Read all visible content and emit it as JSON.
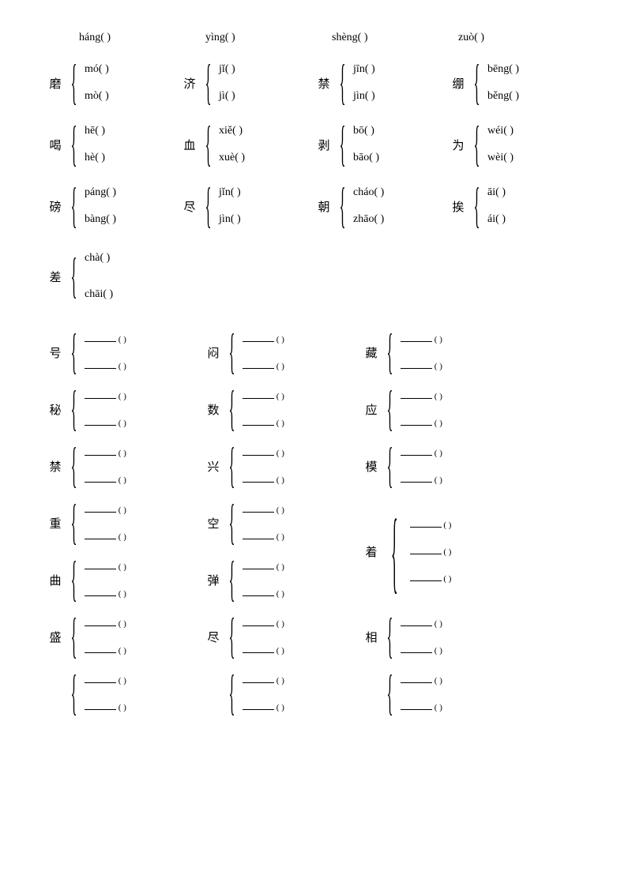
{
  "topRow": [
    "háng(        )",
    "yìng(        )",
    "shèng(        )",
    "zuò(        )"
  ],
  "groups1": [
    {
      "hanzi": "磨",
      "readings": [
        "mó(        )",
        "mò(        )"
      ]
    },
    {
      "hanzi": "济",
      "readings": [
        "jǐ(        )",
        "jì(        )"
      ]
    },
    {
      "hanzi": "禁",
      "readings": [
        "jīn(        )",
        "jìn(        )"
      ]
    },
    {
      "hanzi": "绷",
      "readings": [
        "bēng(        )",
        "běng(        )"
      ]
    },
    {
      "hanzi": "喝",
      "readings": [
        "hē(        )",
        "hè(        )"
      ]
    },
    {
      "hanzi": "血",
      "readings": [
        "xiě(        )",
        "xuè(        )"
      ]
    },
    {
      "hanzi": "剥",
      "readings": [
        "bō(        )",
        "bāo(        )"
      ]
    },
    {
      "hanzi": "为",
      "readings": [
        "wéi(        )",
        "wèi(        )"
      ]
    },
    {
      "hanzi": "磅",
      "readings": [
        "páng(        )",
        "bàng(        )"
      ]
    },
    {
      "hanzi": "尽",
      "readings": [
        "jǐn(        )",
        "jìn(        )"
      ]
    },
    {
      "hanzi": "朝",
      "readings": [
        "cháo(        )",
        "zhāo(        )"
      ]
    },
    {
      "hanzi": "挨",
      "readings": [
        "āi(        )",
        "ái(        )"
      ]
    }
  ],
  "chaGroup": {
    "hanzi": "差",
    "readings": [
      "chà(        )",
      "chāi(        )"
    ]
  },
  "groups2Row1": [
    {
      "hanzi": "号",
      "count": 2
    },
    {
      "hanzi": "闷",
      "count": 2
    },
    {
      "hanzi": "藏",
      "count": 2
    }
  ],
  "groups2Row2": [
    {
      "hanzi": "秘",
      "count": 2
    },
    {
      "hanzi": "数",
      "count": 2
    },
    {
      "hanzi": "应",
      "count": 2
    }
  ],
  "groups2Row3": [
    {
      "hanzi": "禁",
      "count": 2
    },
    {
      "hanzi": "兴",
      "count": 2
    },
    {
      "hanzi": "模",
      "count": 2
    }
  ],
  "groups2Row4": [
    {
      "hanzi": "重",
      "count": 2
    },
    {
      "hanzi": "空",
      "count": 2
    }
  ],
  "zhaoGroup": {
    "hanzi": "着",
    "count": 3
  },
  "groups2Row5": [
    {
      "hanzi": "曲",
      "count": 2
    },
    {
      "hanzi": "弹",
      "count": 2
    }
  ],
  "groups2Row6": [
    {
      "hanzi": "盛",
      "count": 2
    },
    {
      "hanzi": "尽",
      "count": 2
    },
    {
      "hanzi": "相",
      "count": 2
    }
  ],
  "groups2Row7": [
    {
      "hanzi": "",
      "count": 2
    },
    {
      "hanzi": "",
      "count": 2
    },
    {
      "hanzi": "",
      "count": 2
    }
  ]
}
